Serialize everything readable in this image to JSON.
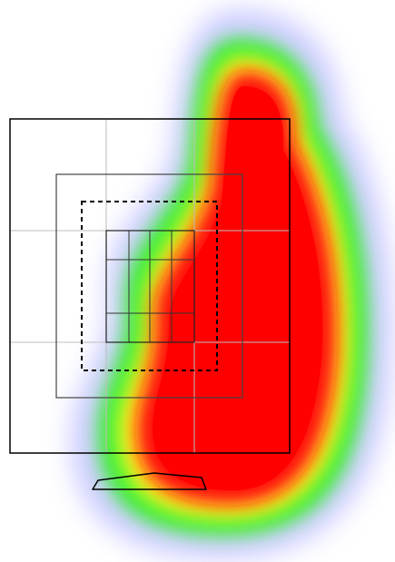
{
  "figure": {
    "kind": "gaze heatmap over camera framing overlay",
    "heatmap_palette": [
      "#ff0000",
      "#ffff00",
      "#00ff00",
      "#8080ff"
    ],
    "guide_grids": [
      {
        "name": "outer-frame",
        "style": "solid",
        "divisions": "3x3"
      },
      {
        "name": "middle-frame",
        "style": "solid",
        "divisions": "3x3"
      },
      {
        "name": "safe-area",
        "style": "dashed",
        "divisions": "none"
      },
      {
        "name": "inner-frame",
        "style": "solid",
        "divisions": "3x3"
      }
    ],
    "line_color": "#000000",
    "gridline_color": "#bdbdbd"
  }
}
